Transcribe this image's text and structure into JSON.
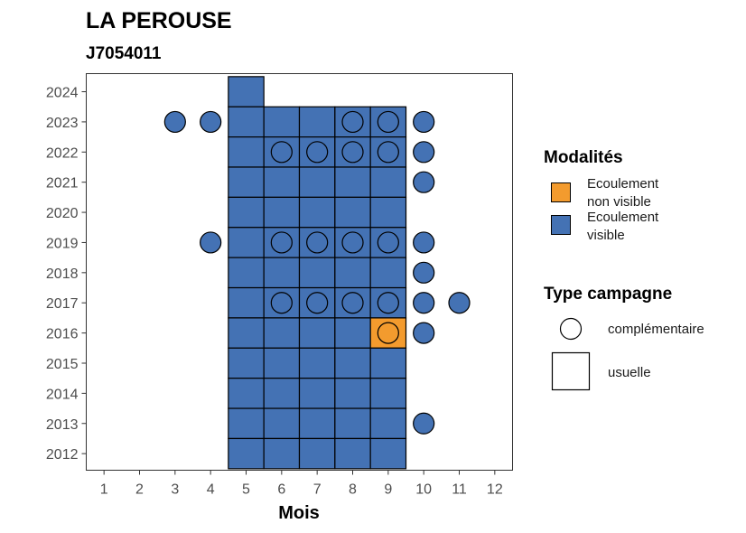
{
  "chart_data": {
    "type": "tile",
    "title": "LA PEROUSE",
    "subtitle": "J7054011",
    "xlabel": "Mois",
    "ylabel": "",
    "x_ticks": [
      "1",
      "2",
      "3",
      "4",
      "5",
      "6",
      "7",
      "8",
      "9",
      "10",
      "11",
      "12"
    ],
    "y_ticks": [
      "2012",
      "2013",
      "2014",
      "2015",
      "2016",
      "2017",
      "2018",
      "2019",
      "2020",
      "2021",
      "2022",
      "2023",
      "2024"
    ],
    "xlim": [
      0.5,
      12.5
    ],
    "ylim": [
      2011.45,
      2024.6
    ],
    "colors": {
      "non_visible": "#F39B2E",
      "visible": "#4472B4"
    },
    "legend_modalites": {
      "title": "Modalités",
      "items": [
        {
          "key": "non_visible",
          "label_lines": [
            "Ecoulement",
            "non visible"
          ]
        },
        {
          "key": "visible",
          "label_lines": [
            "Ecoulement",
            "visible"
          ]
        }
      ]
    },
    "legend_campagne": {
      "title": "Type campagne",
      "items": [
        {
          "key": "complementaire",
          "label": "complémentaire"
        },
        {
          "key": "usuelle",
          "label": "usuelle"
        }
      ]
    },
    "usuelle": [
      {
        "year": 2024,
        "month": 5,
        "mod": "visible"
      },
      {
        "year": 2023,
        "month": 5,
        "mod": "visible"
      },
      {
        "year": 2023,
        "month": 6,
        "mod": "visible"
      },
      {
        "year": 2023,
        "month": 7,
        "mod": "visible"
      },
      {
        "year": 2023,
        "month": 8,
        "mod": "visible"
      },
      {
        "year": 2023,
        "month": 9,
        "mod": "visible"
      },
      {
        "year": 2022,
        "month": 5,
        "mod": "visible"
      },
      {
        "year": 2022,
        "month": 6,
        "mod": "visible"
      },
      {
        "year": 2022,
        "month": 7,
        "mod": "visible"
      },
      {
        "year": 2022,
        "month": 8,
        "mod": "visible"
      },
      {
        "year": 2022,
        "month": 9,
        "mod": "visible"
      },
      {
        "year": 2021,
        "month": 5,
        "mod": "visible"
      },
      {
        "year": 2021,
        "month": 6,
        "mod": "visible"
      },
      {
        "year": 2021,
        "month": 7,
        "mod": "visible"
      },
      {
        "year": 2021,
        "month": 8,
        "mod": "visible"
      },
      {
        "year": 2021,
        "month": 9,
        "mod": "visible"
      },
      {
        "year": 2020,
        "month": 5,
        "mod": "visible"
      },
      {
        "year": 2020,
        "month": 6,
        "mod": "visible"
      },
      {
        "year": 2020,
        "month": 7,
        "mod": "visible"
      },
      {
        "year": 2020,
        "month": 8,
        "mod": "visible"
      },
      {
        "year": 2020,
        "month": 9,
        "mod": "visible"
      },
      {
        "year": 2019,
        "month": 5,
        "mod": "visible"
      },
      {
        "year": 2019,
        "month": 6,
        "mod": "visible"
      },
      {
        "year": 2019,
        "month": 7,
        "mod": "visible"
      },
      {
        "year": 2019,
        "month": 8,
        "mod": "visible"
      },
      {
        "year": 2019,
        "month": 9,
        "mod": "visible"
      },
      {
        "year": 2018,
        "month": 5,
        "mod": "visible"
      },
      {
        "year": 2018,
        "month": 6,
        "mod": "visible"
      },
      {
        "year": 2018,
        "month": 7,
        "mod": "visible"
      },
      {
        "year": 2018,
        "month": 8,
        "mod": "visible"
      },
      {
        "year": 2018,
        "month": 9,
        "mod": "visible"
      },
      {
        "year": 2017,
        "month": 5,
        "mod": "visible"
      },
      {
        "year": 2017,
        "month": 6,
        "mod": "visible"
      },
      {
        "year": 2017,
        "month": 7,
        "mod": "visible"
      },
      {
        "year": 2017,
        "month": 8,
        "mod": "visible"
      },
      {
        "year": 2017,
        "month": 9,
        "mod": "visible"
      },
      {
        "year": 2016,
        "month": 5,
        "mod": "visible"
      },
      {
        "year": 2016,
        "month": 6,
        "mod": "visible"
      },
      {
        "year": 2016,
        "month": 7,
        "mod": "visible"
      },
      {
        "year": 2016,
        "month": 8,
        "mod": "visible"
      },
      {
        "year": 2016,
        "month": 9,
        "mod": "non_visible"
      },
      {
        "year": 2015,
        "month": 5,
        "mod": "visible"
      },
      {
        "year": 2015,
        "month": 6,
        "mod": "visible"
      },
      {
        "year": 2015,
        "month": 7,
        "mod": "visible"
      },
      {
        "year": 2015,
        "month": 8,
        "mod": "visible"
      },
      {
        "year": 2015,
        "month": 9,
        "mod": "visible"
      },
      {
        "year": 2014,
        "month": 5,
        "mod": "visible"
      },
      {
        "year": 2014,
        "month": 6,
        "mod": "visible"
      },
      {
        "year": 2014,
        "month": 7,
        "mod": "visible"
      },
      {
        "year": 2014,
        "month": 8,
        "mod": "visible"
      },
      {
        "year": 2014,
        "month": 9,
        "mod": "visible"
      },
      {
        "year": 2013,
        "month": 5,
        "mod": "visible"
      },
      {
        "year": 2013,
        "month": 6,
        "mod": "visible"
      },
      {
        "year": 2013,
        "month": 7,
        "mod": "visible"
      },
      {
        "year": 2013,
        "month": 8,
        "mod": "visible"
      },
      {
        "year": 2013,
        "month": 9,
        "mod": "visible"
      },
      {
        "year": 2012,
        "month": 5,
        "mod": "visible"
      },
      {
        "year": 2012,
        "month": 6,
        "mod": "visible"
      },
      {
        "year": 2012,
        "month": 7,
        "mod": "visible"
      },
      {
        "year": 2012,
        "month": 8,
        "mod": "visible"
      },
      {
        "year": 2012,
        "month": 9,
        "mod": "visible"
      }
    ],
    "complementaire": [
      {
        "year": 2023,
        "month": 3,
        "mod": "visible"
      },
      {
        "year": 2023,
        "month": 4,
        "mod": "visible"
      },
      {
        "year": 2023,
        "month": 8,
        "mod": "visible"
      },
      {
        "year": 2023,
        "month": 9,
        "mod": "visible"
      },
      {
        "year": 2023,
        "month": 10,
        "mod": "visible"
      },
      {
        "year": 2022,
        "month": 6,
        "mod": "visible"
      },
      {
        "year": 2022,
        "month": 7,
        "mod": "visible"
      },
      {
        "year": 2022,
        "month": 8,
        "mod": "visible"
      },
      {
        "year": 2022,
        "month": 9,
        "mod": "visible"
      },
      {
        "year": 2022,
        "month": 10,
        "mod": "visible"
      },
      {
        "year": 2021,
        "month": 10,
        "mod": "visible"
      },
      {
        "year": 2019,
        "month": 4,
        "mod": "visible"
      },
      {
        "year": 2019,
        "month": 6,
        "mod": "visible"
      },
      {
        "year": 2019,
        "month": 7,
        "mod": "visible"
      },
      {
        "year": 2019,
        "month": 8,
        "mod": "visible"
      },
      {
        "year": 2019,
        "month": 9,
        "mod": "visible"
      },
      {
        "year": 2019,
        "month": 10,
        "mod": "visible"
      },
      {
        "year": 2018,
        "month": 10,
        "mod": "visible"
      },
      {
        "year": 2017,
        "month": 6,
        "mod": "visible"
      },
      {
        "year": 2017,
        "month": 7,
        "mod": "visible"
      },
      {
        "year": 2017,
        "month": 8,
        "mod": "visible"
      },
      {
        "year": 2017,
        "month": 9,
        "mod": "visible"
      },
      {
        "year": 2017,
        "month": 10,
        "mod": "visible"
      },
      {
        "year": 2017,
        "month": 11,
        "mod": "visible"
      },
      {
        "year": 2016,
        "month": 9,
        "mod": "non_visible"
      },
      {
        "year": 2016,
        "month": 10,
        "mod": "visible"
      },
      {
        "year": 2013,
        "month": 10,
        "mod": "visible"
      }
    ]
  }
}
